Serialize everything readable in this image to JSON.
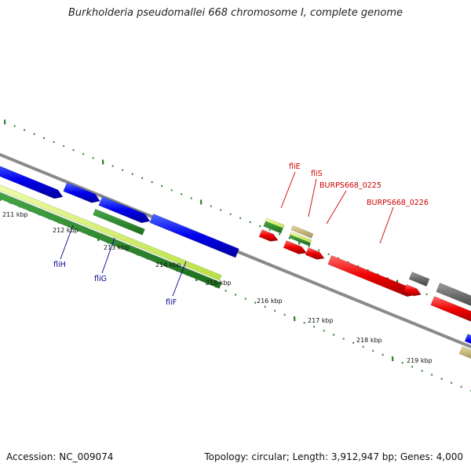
{
  "title": "Burkholderia pseudomallei 668 chromosome I, complete genome",
  "footer": {
    "accession": "Accession: NC_009074",
    "topology": "Topology: circular; Length: 3,912,947 bp; Genes: 4,000"
  },
  "colors": {
    "backbone": "#8a8a8a",
    "tick": "#2f7d2f",
    "kbp_label": "#111111",
    "gene_label_blue": "#00008b",
    "gene_label_red": "#cc0000"
  },
  "kbp_labels": [
    "211 kbp",
    "212 kbp",
    "213 kbp",
    "214 kbp",
    "215 kbp",
    "216 kbp",
    "217 kbp",
    "218 kbp",
    "219 kbp"
  ],
  "gene_labels": [
    {
      "name": "fliH",
      "color": "blue"
    },
    {
      "name": "fliG",
      "color": "blue"
    },
    {
      "name": "fliF",
      "color": "blue"
    },
    {
      "name": "fliE",
      "color": "red"
    },
    {
      "name": "fliS",
      "color": "red"
    },
    {
      "name": "BURPS668_0225",
      "color": "red"
    },
    {
      "name": "BURPS668_0226",
      "color": "red"
    }
  ]
}
